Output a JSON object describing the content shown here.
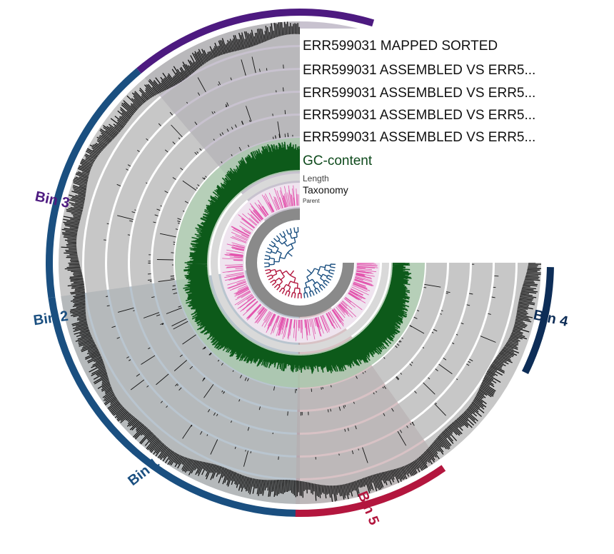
{
  "layers": [
    {
      "name": "ERR599031 MAPPED SORTED"
    },
    {
      "name": "ERR599031 ASSEMBLED VS ERR5..."
    },
    {
      "name": "ERR599031 ASSEMBLED VS ERR5..."
    },
    {
      "name": "ERR599031 ASSEMBLED VS ERR5..."
    },
    {
      "name": "ERR599031 ASSEMBLED VS ERR5..."
    }
  ],
  "gc_label": "GC-content",
  "length_label": "Length",
  "taxonomy_label": "Taxonomy",
  "parent_label": "Parent",
  "bins": [
    {
      "name": "Bin 1",
      "color": "#1a4f80",
      "start_deg": 180,
      "end_deg": 262
    },
    {
      "name": "Bin 2",
      "color": "#1a4f80",
      "start_deg": 262,
      "end_deg": 320
    },
    {
      "name": "Bin 3",
      "color": "#4d1a80",
      "start_deg": 320,
      "end_deg": 377
    },
    {
      "name": "Bin 4",
      "color": "#0d2d57",
      "start_deg": 91,
      "end_deg": 116
    },
    {
      "name": "Bin 5",
      "color": "#b3163e",
      "start_deg": 145,
      "end_deg": 181
    }
  ],
  "colors": {
    "layer_bg": "#b4b4b4",
    "signal": "#111111",
    "gc": "#0d5a1a",
    "gc_bg": "#a9c7ac",
    "taxonomy": "#e0309c",
    "bin1_sel": "#7f96a8",
    "bin3_sel": "#9a8fa7",
    "bin5_sel": "#b89095"
  }
}
